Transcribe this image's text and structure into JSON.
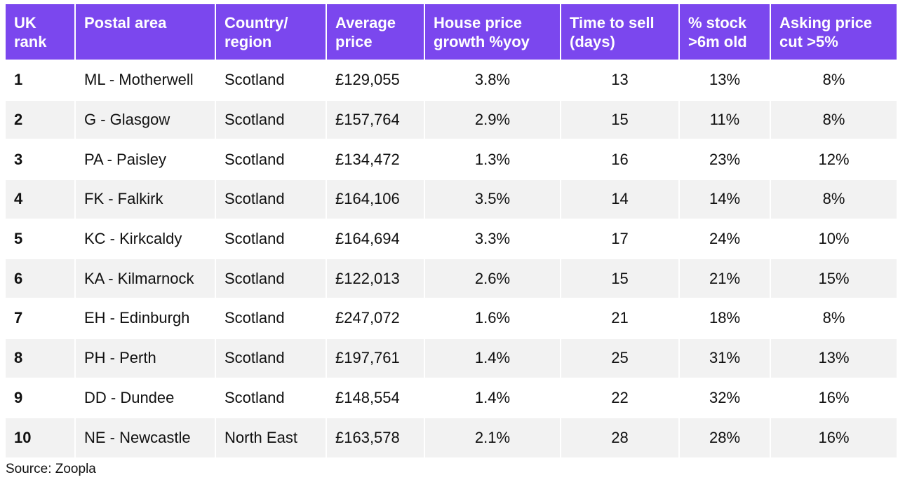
{
  "table": {
    "headers": [
      [
        "UK",
        "rank"
      ],
      [
        "Postal area"
      ],
      [
        "Country/",
        "region"
      ],
      [
        "Average",
        "price"
      ],
      [
        "House price",
        "growth %yoy"
      ],
      [
        "Time to sell",
        "(days)"
      ],
      [
        "% stock",
        ">6m old"
      ],
      [
        "Asking price",
        "cut >5%"
      ]
    ],
    "rows": [
      [
        "1",
        "ML - Motherwell",
        "Scotland",
        "£129,055",
        "3.8%",
        "13",
        "13%",
        "8%"
      ],
      [
        "2",
        "G - Glasgow",
        "Scotland",
        "£157,764",
        "2.9%",
        "15",
        "11%",
        "8%"
      ],
      [
        "3",
        "PA - Paisley",
        "Scotland",
        "£134,472",
        "1.3%",
        "16",
        "23%",
        "12%"
      ],
      [
        "4",
        "FK - Falkirk",
        "Scotland",
        "£164,106",
        "3.5%",
        "14",
        "14%",
        "8%"
      ],
      [
        "5",
        "KC - Kirkcaldy",
        "Scotland",
        "£164,694",
        "3.3%",
        "17",
        "24%",
        "10%"
      ],
      [
        "6",
        "KA - Kilmarnock",
        "Scotland",
        "£122,013",
        "2.6%",
        "15",
        "21%",
        "15%"
      ],
      [
        "7",
        "EH - Edinburgh",
        "Scotland",
        "£247,072",
        "1.6%",
        "21",
        "18%",
        "8%"
      ],
      [
        "8",
        "PH - Perth",
        "Scotland",
        "£197,761",
        "1.4%",
        "25",
        "31%",
        "13%"
      ],
      [
        "9",
        "DD - Dundee",
        "Scotland",
        "£148,554",
        "1.4%",
        "22",
        "32%",
        "16%"
      ],
      [
        "10",
        "NE - Newcastle",
        "North East",
        "£163,578",
        "2.1%",
        "28",
        "28%",
        "16%"
      ]
    ]
  },
  "source": "Source: Zoopla",
  "colors": {
    "header_bg": "#7b47ee",
    "header_text": "#ffffff",
    "row_alt_bg": "#f2f2f2"
  }
}
